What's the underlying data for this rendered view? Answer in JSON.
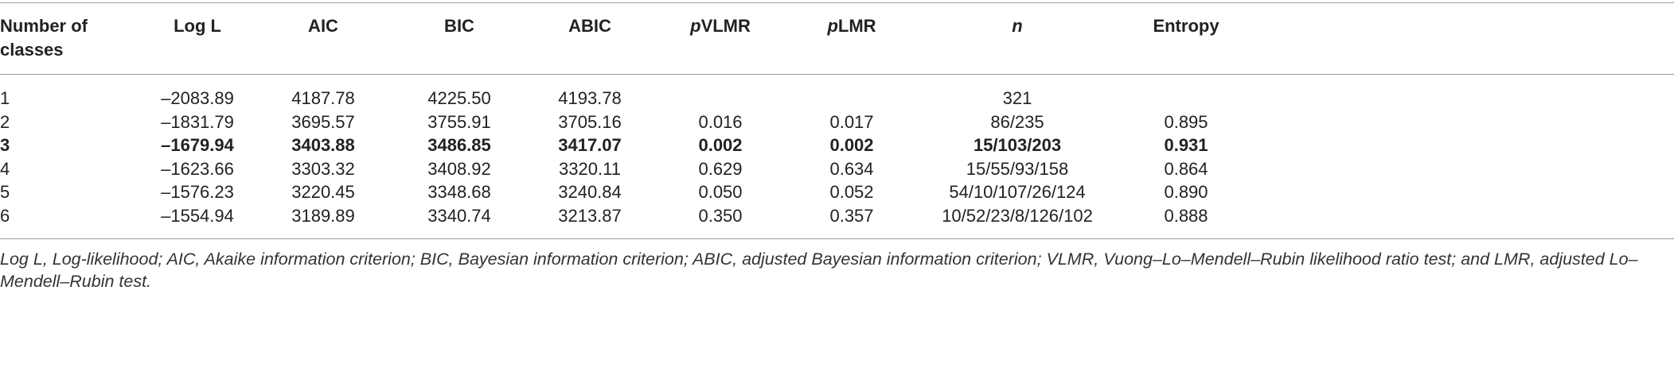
{
  "table": {
    "headers": [
      "Number of classes",
      "Log L",
      "AIC",
      "BIC",
      "ABIC",
      {
        "italic": "p",
        "rest": "VLMR"
      },
      {
        "italic": "p",
        "rest": "LMR"
      },
      {
        "italic": "n"
      },
      "Entropy"
    ],
    "bold_row": 2,
    "rows": [
      [
        "1",
        "–2083.89",
        "4187.78",
        "4225.50",
        "4193.78",
        null,
        null,
        "321",
        null
      ],
      [
        "2",
        "–1831.79",
        "3695.57",
        "3755.91",
        "3705.16",
        "0.016",
        "0.017",
        "86/235",
        "0.895"
      ],
      [
        "3",
        "–1679.94",
        "3403.88",
        "3486.85",
        "3417.07",
        "0.002",
        "0.002",
        "15/103/203",
        "0.931"
      ],
      [
        "4",
        "–1623.66",
        "3303.32",
        "3408.92",
        "3320.11",
        "0.629",
        "0.634",
        "15/55/93/158",
        "0.864"
      ],
      [
        "5",
        "–1576.23",
        "3220.45",
        "3348.68",
        "3240.84",
        "0.050",
        "0.052",
        "54/10/107/26/124",
        "0.890"
      ],
      [
        "6",
        "–1554.94",
        "3189.89",
        "3340.74",
        "3213.87",
        "0.350",
        "0.357",
        "10/52/23/8/126/102",
        "0.888"
      ]
    ]
  },
  "footnote": "Log L, Log-likelihood; AIC, Akaike information criterion; BIC, Bayesian information criterion; ABIC, adjusted Bayesian information criterion; VLMR, Vuong–Lo–Mendell–Rubin likelihood ratio test; and LMR, adjusted Lo–Mendell–Rubin test."
}
